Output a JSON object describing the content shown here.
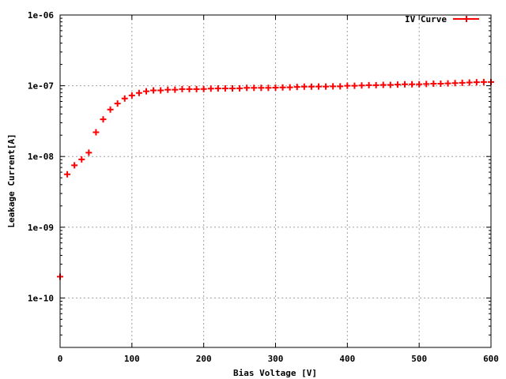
{
  "chart_data": {
    "type": "scatter",
    "title": "",
    "xlabel": "Bias Voltage [V]",
    "ylabel": "Leakage Current[A]",
    "xlim": [
      0,
      600
    ],
    "ylim": [
      2e-11,
      1e-06
    ],
    "yscale": "log",
    "grid": true,
    "legend_position": "top-right",
    "x_ticks": [
      0,
      100,
      200,
      300,
      400,
      500,
      600
    ],
    "x_tick_labels": [
      "0",
      "100",
      "200",
      "300",
      "400",
      "500",
      "600"
    ],
    "y_ticks": [
      1e-10,
      1e-09,
      1e-08,
      1e-07,
      1e-06
    ],
    "y_tick_labels": [
      "1e-10",
      "1e-09",
      "1e-08",
      "1e-07",
      "1e-06"
    ],
    "series": [
      {
        "name": "IV Curve",
        "color": "#ff0000",
        "marker": "plus",
        "x": [
          0,
          10,
          20,
          30,
          40,
          50,
          60,
          70,
          80,
          90,
          100,
          110,
          120,
          130,
          140,
          150,
          160,
          170,
          180,
          190,
          200,
          210,
          220,
          230,
          240,
          250,
          260,
          270,
          280,
          290,
          300,
          310,
          320,
          330,
          340,
          350,
          360,
          370,
          380,
          390,
          400,
          410,
          420,
          430,
          440,
          450,
          460,
          470,
          480,
          490,
          500,
          510,
          520,
          530,
          540,
          550,
          560,
          570,
          580,
          590,
          600
        ],
        "y": [
          2e-10,
          5.6e-09,
          7.5e-09,
          9.1e-09,
          1.13e-08,
          2.2e-08,
          3.35e-08,
          4.6e-08,
          5.6e-08,
          6.6e-08,
          7.3e-08,
          7.9e-08,
          8.35e-08,
          8.6e-08,
          8.6e-08,
          8.8e-08,
          8.8e-08,
          8.95e-08,
          8.95e-08,
          8.95e-08,
          9e-08,
          9.1e-08,
          9.15e-08,
          9.15e-08,
          9.15e-08,
          9.2e-08,
          9.35e-08,
          9.35e-08,
          9.35e-08,
          9.35e-08,
          9.4e-08,
          9.45e-08,
          9.5e-08,
          9.6e-08,
          9.7e-08,
          9.7e-08,
          9.75e-08,
          9.75e-08,
          9.8e-08,
          9.8e-08,
          1e-07,
          1e-07,
          1.01e-07,
          1.02e-07,
          1.02e-07,
          1.03e-07,
          1.03e-07,
          1.04e-07,
          1.05e-07,
          1.05e-07,
          1.05e-07,
          1.06e-07,
          1.07e-07,
          1.07e-07,
          1.08e-07,
          1.09e-07,
          1.1e-07,
          1.11e-07,
          1.12e-07,
          1.13e-07,
          1.13e-07
        ]
      }
    ]
  }
}
